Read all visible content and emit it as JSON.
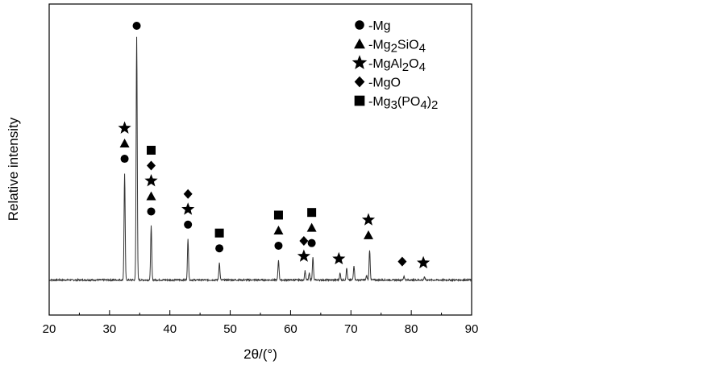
{
  "chart_data": {
    "type": "line",
    "xlabel": "2θ/(°)",
    "ylabel": "Relative intensity",
    "xlim": [
      20,
      90
    ],
    "xticks": [
      20,
      30,
      40,
      50,
      60,
      70,
      80,
      90
    ],
    "ylim": [
      0,
      100
    ],
    "yticks_shown": false,
    "grid": false,
    "legend_position": "top-right",
    "legend": [
      {
        "marker": "circle",
        "label": "-Mg",
        "formula": [
          [
            "Mg",
            ""
          ]
        ]
      },
      {
        "marker": "triangle",
        "label": "-Mg2SiO4",
        "formula": [
          [
            "Mg",
            ""
          ],
          [
            "2",
            "sub"
          ],
          [
            "SiO",
            ""
          ],
          [
            "4",
            "sub"
          ]
        ]
      },
      {
        "marker": "star",
        "label": "-MgAl2O4",
        "formula": [
          [
            "MgAl",
            ""
          ],
          [
            "2",
            "sub"
          ],
          [
            "O",
            ""
          ],
          [
            "4",
            "sub"
          ]
        ]
      },
      {
        "marker": "diamond",
        "label": "-MgO",
        "formula": [
          [
            "MgO",
            ""
          ]
        ]
      },
      {
        "marker": "square",
        "label": "-Mg3(PO4)2",
        "formula": [
          [
            "Mg",
            ""
          ],
          [
            "3",
            "sub"
          ],
          [
            "(PO",
            ""
          ],
          [
            "4",
            "sub"
          ],
          [
            ")",
            ""
          ],
          [
            "2",
            "sub"
          ]
        ]
      }
    ],
    "baseline": 7.5,
    "peaks": [
      {
        "x": 32.5,
        "y": 48
      },
      {
        "x": 34.5,
        "y": 100
      },
      {
        "x": 36.9,
        "y": 28
      },
      {
        "x": 43.0,
        "y": 23
      },
      {
        "x": 48.2,
        "y": 14
      },
      {
        "x": 58.0,
        "y": 15
      },
      {
        "x": 62.4,
        "y": 11
      },
      {
        "x": 63.1,
        "y": 10
      },
      {
        "x": 63.7,
        "y": 16
      },
      {
        "x": 68.2,
        "y": 10
      },
      {
        "x": 69.3,
        "y": 12
      },
      {
        "x": 70.5,
        "y": 13
      },
      {
        "x": 72.6,
        "y": 9
      },
      {
        "x": 73.1,
        "y": 19
      },
      {
        "x": 78.8,
        "y": 9
      },
      {
        "x": 82.2,
        "y": 8.5
      }
    ],
    "annotations": [
      {
        "x": 34.5,
        "markers": [
          "circle"
        ]
      },
      {
        "x": 32.5,
        "markers": [
          "circle",
          "triangle",
          "star"
        ]
      },
      {
        "x": 36.9,
        "markers": [
          "circle",
          "triangle",
          "star",
          "diamond",
          "square"
        ]
      },
      {
        "x": 43.0,
        "markers": [
          "circle",
          "star",
          "diamond"
        ]
      },
      {
        "x": 48.2,
        "markers": [
          "circle",
          "square"
        ]
      },
      {
        "x": 58.0,
        "markers": [
          "circle",
          "triangle",
          "square"
        ]
      },
      {
        "x": 62.2,
        "markers": [
          "star",
          "diamond"
        ]
      },
      {
        "x": 63.5,
        "markers": [
          "circle",
          "triangle",
          "square"
        ]
      },
      {
        "x": 68.0,
        "markers": [
          "star"
        ]
      },
      {
        "x": 72.9,
        "markers": [
          "triangle",
          "star"
        ]
      },
      {
        "x": 78.5,
        "markers": [
          "diamond"
        ]
      },
      {
        "x": 82.0,
        "markers": [
          "star"
        ]
      }
    ]
  }
}
